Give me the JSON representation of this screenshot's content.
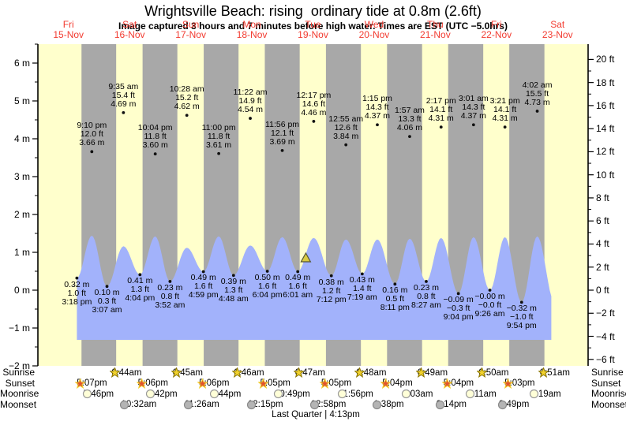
{
  "chart_data": {
    "type": "area",
    "title": "Wrightsville Beach: rising  ordinary tide at 0.8m (2.6ft)",
    "subtitle": "Image captured 3 hours and 7 minutes before high water. Times are EST (UTC −5.0hrs)",
    "x_axis_days": [
      {
        "weekday": "Fri",
        "date": "15-Nov"
      },
      {
        "weekday": "Sat",
        "date": "16-Nov"
      },
      {
        "weekday": "Sun",
        "date": "17-Nov"
      },
      {
        "weekday": "Mon",
        "date": "18-Nov"
      },
      {
        "weekday": "Tue",
        "date": "19-Nov"
      },
      {
        "weekday": "Wed",
        "date": "20-Nov"
      },
      {
        "weekday": "Thu",
        "date": "21-Nov"
      },
      {
        "weekday": "Fri",
        "date": "22-Nov"
      },
      {
        "weekday": "Sat",
        "date": "23-Nov"
      }
    ],
    "y_axis_left": {
      "unit": "m",
      "ticks": [
        {
          "v": 6,
          "label": "6 m"
        },
        {
          "v": 5,
          "label": "5 m"
        },
        {
          "v": 4,
          "label": "4 m"
        },
        {
          "v": 3,
          "label": "3 m"
        },
        {
          "v": 2,
          "label": "2 m"
        },
        {
          "v": 1,
          "label": "1 m"
        },
        {
          "v": 0,
          "label": "0 m"
        },
        {
          "v": -1,
          "label": "−1 m"
        },
        {
          "v": -2,
          "label": "−2 m"
        }
      ]
    },
    "y_axis_right": {
      "unit": "ft",
      "ticks": [
        {
          "v": 20,
          "label": "20 ft"
        },
        {
          "v": 18,
          "label": "18 ft"
        },
        {
          "v": 16,
          "label": "16 ft"
        },
        {
          "v": 14,
          "label": "14 ft"
        },
        {
          "v": 12,
          "label": "12 ft"
        },
        {
          "v": 10,
          "label": "10 ft"
        },
        {
          "v": 8,
          "label": "8 ft"
        },
        {
          "v": 6,
          "label": "6 ft"
        },
        {
          "v": 4,
          "label": "4 ft"
        },
        {
          "v": 2,
          "label": "2 ft"
        },
        {
          "v": 0,
          "label": "0 ft"
        },
        {
          "v": -2,
          "label": "−2 ft"
        },
        {
          "v": -4,
          "label": "−4 ft"
        },
        {
          "v": -6,
          "label": "−6 ft"
        }
      ]
    },
    "tide_events": [
      {
        "day": 0,
        "hour": 15.3,
        "type": "low",
        "time": "3:18 pm",
        "ft": "1.0 ft",
        "m": "0.32 m",
        "height_m": 0.32
      },
      {
        "day": 0,
        "hour": 21.17,
        "type": "high",
        "time": "9:10 pm",
        "ft": "12.0 ft",
        "m": "3.66 m",
        "height_m": 3.66,
        "curve_peak_m": 1.44
      },
      {
        "day": 1,
        "hour": 3.12,
        "type": "low",
        "time": "3:07 am",
        "ft": "0.3 ft",
        "m": "0.10 m",
        "height_m": 0.1
      },
      {
        "day": 1,
        "hour": 9.58,
        "type": "high",
        "time": "9:35 am",
        "ft": "15.4 ft",
        "m": "4.69 m",
        "height_m": 4.69,
        "curve_peak_m": 1.16
      },
      {
        "day": 1,
        "hour": 16.07,
        "type": "low",
        "time": "4:04 pm",
        "ft": "1.3 ft",
        "m": "0.41 m",
        "height_m": 0.41
      },
      {
        "day": 1,
        "hour": 22.07,
        "type": "high",
        "time": "10:04 pm",
        "ft": "11.8 ft",
        "m": "3.60 m",
        "height_m": 3.6,
        "curve_peak_m": 1.42
      },
      {
        "day": 2,
        "hour": 3.87,
        "type": "low",
        "time": "3:52 am",
        "ft": "0.8 ft",
        "m": "0.23 m",
        "height_m": 0.23
      },
      {
        "day": 2,
        "hour": 10.47,
        "type": "high",
        "time": "10:28 am",
        "ft": "15.2 ft",
        "m": "4.62 m",
        "height_m": 4.62,
        "curve_peak_m": 1.12
      },
      {
        "day": 2,
        "hour": 16.98,
        "type": "low",
        "time": "4:59 pm",
        "ft": "1.6 ft",
        "m": "0.49 m",
        "height_m": 0.49
      },
      {
        "day": 2,
        "hour": 23.0,
        "type": "high",
        "time": "11:00 pm",
        "ft": "11.8 ft",
        "m": "3.61 m",
        "height_m": 3.61,
        "curve_peak_m": 1.42
      },
      {
        "day": 3,
        "hour": 4.8,
        "type": "low",
        "time": "4:48 am",
        "ft": "1.3 ft",
        "m": "0.39 m",
        "height_m": 0.39
      },
      {
        "day": 3,
        "hour": 11.37,
        "type": "high",
        "time": "11:22 am",
        "ft": "14.9 ft",
        "m": "4.54 m",
        "height_m": 4.54,
        "curve_peak_m": 1.18
      },
      {
        "day": 3,
        "hour": 18.07,
        "type": "low",
        "time": "6:04 pm",
        "ft": "1.6 ft",
        "m": "0.50 m",
        "height_m": 0.5
      },
      {
        "day": 3,
        "hour": 23.93,
        "type": "high",
        "time": "11:56 pm",
        "ft": "12.1 ft",
        "m": "3.69 m",
        "height_m": 3.69,
        "curve_peak_m": 1.4
      },
      {
        "day": 4,
        "hour": 6.02,
        "type": "low",
        "time": "6:01 am",
        "ft": "1.6 ft",
        "m": "0.49 m",
        "height_m": 0.49
      },
      {
        "day": 4,
        "hour": 12.28,
        "type": "high",
        "time": "12:17 pm",
        "ft": "14.6 ft",
        "m": "4.46 m",
        "height_m": 4.46,
        "curve_peak_m": 1.38
      },
      {
        "day": 4,
        "hour": 19.2,
        "type": "low",
        "time": "7:12 pm",
        "ft": "1.2 ft",
        "m": "0.38 m",
        "height_m": 0.38
      },
      {
        "day": 5,
        "hour": 0.92,
        "type": "high",
        "time": "12:55 am",
        "ft": "12.6 ft",
        "m": "3.84 m",
        "height_m": 3.84,
        "curve_peak_m": 1.34
      },
      {
        "day": 5,
        "hour": 7.32,
        "type": "low",
        "time": "7:19 am",
        "ft": "1.4 ft",
        "m": "0.43 m",
        "height_m": 0.43
      },
      {
        "day": 5,
        "hour": 13.25,
        "type": "high",
        "time": "1:15 pm",
        "ft": "14.3 ft",
        "m": "4.37 m",
        "height_m": 4.37,
        "curve_peak_m": 1.34
      },
      {
        "day": 5,
        "hour": 20.18,
        "type": "low",
        "time": "8:11 pm",
        "ft": "0.5 ft",
        "m": "0.16 m",
        "height_m": 0.16
      },
      {
        "day": 6,
        "hour": 1.95,
        "type": "high",
        "time": "1:57 am",
        "ft": "13.3 ft",
        "m": "4.06 m",
        "height_m": 4.06,
        "curve_peak_m": 1.36
      },
      {
        "day": 6,
        "hour": 8.45,
        "type": "low",
        "time": "8:27 am",
        "ft": "0.8 ft",
        "m": "0.23 m",
        "height_m": 0.23
      },
      {
        "day": 6,
        "hour": 14.28,
        "type": "high",
        "time": "2:17 pm",
        "ft": "14.1 ft",
        "m": "4.31 m",
        "height_m": 4.31,
        "curve_peak_m": 1.38
      },
      {
        "day": 6,
        "hour": 21.07,
        "type": "low",
        "time": "9:04 pm",
        "ft": "−0.3 ft",
        "m": "−0.09 m",
        "height_m": -0.09
      },
      {
        "day": 7,
        "hour": 3.02,
        "type": "high",
        "time": "3:01 am",
        "ft": "14.3 ft",
        "m": "4.37 m",
        "height_m": 4.37,
        "curve_peak_m": 1.4
      },
      {
        "day": 7,
        "hour": 9.43,
        "type": "low",
        "time": "9:26 am",
        "ft": "−0.0 ft",
        "m": "−0.00 m",
        "height_m": 0.0
      },
      {
        "day": 7,
        "hour": 15.35,
        "type": "high",
        "time": "3:21 pm",
        "ft": "14.1 ft",
        "m": "4.31 m",
        "height_m": 4.31,
        "curve_peak_m": 1.4
      },
      {
        "day": 7,
        "hour": 21.9,
        "type": "low",
        "time": "9:54 pm",
        "ft": "−1.0 ft",
        "m": "−0.32 m",
        "height_m": -0.32
      },
      {
        "day": 8,
        "hour": 4.03,
        "type": "high",
        "time": "4:02 am",
        "ft": "15.5 ft",
        "m": "4.73 m",
        "height_m": 4.73,
        "curve_peak_m": 1.42
      }
    ],
    "current_time_marker": {
      "day": 4,
      "hour": 9.17
    },
    "astro_rows": {
      "sunrise": {
        "label": "Sunrise",
        "icon": "sunrise-star-icon",
        "entries": [
          {
            "day": 1,
            "hour": 6.73,
            "time": "6:44am"
          },
          {
            "day": 2,
            "hour": 6.75,
            "time": "6:45am"
          },
          {
            "day": 3,
            "hour": 6.77,
            "time": "6:46am"
          },
          {
            "day": 4,
            "hour": 6.78,
            "time": "6:47am"
          },
          {
            "day": 5,
            "hour": 6.8,
            "time": "6:48am"
          },
          {
            "day": 6,
            "hour": 6.82,
            "time": "6:49am"
          },
          {
            "day": 7,
            "hour": 6.83,
            "time": "6:50am"
          },
          {
            "day": 8,
            "hour": 6.85,
            "time": "6:51am"
          }
        ]
      },
      "sunset": {
        "label": "Sunset",
        "icon": "sunset-star-icon",
        "entries": [
          {
            "day": 0,
            "hour": 17.12,
            "time": "5:07pm"
          },
          {
            "day": 1,
            "hour": 17.1,
            "time": "5:06pm"
          },
          {
            "day": 2,
            "hour": 17.1,
            "time": "5:06pm"
          },
          {
            "day": 3,
            "hour": 17.08,
            "time": "5:05pm"
          },
          {
            "day": 4,
            "hour": 17.08,
            "time": "5:05pm"
          },
          {
            "day": 5,
            "hour": 17.07,
            "time": "5:04pm"
          },
          {
            "day": 6,
            "hour": 17.07,
            "time": "5:04pm"
          },
          {
            "day": 7,
            "hour": 17.05,
            "time": "5:03pm"
          }
        ]
      },
      "moonrise": {
        "label": "Moonrise",
        "icon": "moonrise-circle-icon",
        "entries": [
          {
            "day": 0,
            "hour": 19.77,
            "time": "7:46pm"
          },
          {
            "day": 1,
            "hour": 20.7,
            "time": "8:42pm"
          },
          {
            "day": 2,
            "hour": 21.73,
            "time": "9:44pm"
          },
          {
            "day": 3,
            "hour": 22.82,
            "time": "10:49pm"
          },
          {
            "day": 4,
            "hour": 23.93,
            "time": "11:56pm"
          },
          {
            "day": 6,
            "hour": 1.05,
            "time": "1:03am"
          },
          {
            "day": 7,
            "hour": 2.18,
            "time": "2:11am"
          },
          {
            "day": 8,
            "hour": 3.32,
            "time": "3:19am"
          }
        ]
      },
      "moonset": {
        "label": "Moonset",
        "icon": "moonset-circle-icon",
        "entries": [
          {
            "day": 1,
            "hour": 10.53,
            "time": "10:32am"
          },
          {
            "day": 2,
            "hour": 11.43,
            "time": "11:26am"
          },
          {
            "day": 3,
            "hour": 12.25,
            "time": "12:15pm"
          },
          {
            "day": 4,
            "hour": 12.97,
            "time": "12:58pm"
          },
          {
            "day": 5,
            "hour": 13.63,
            "time": "1:38pm"
          },
          {
            "day": 6,
            "hour": 14.23,
            "time": "2:14pm"
          },
          {
            "day": 7,
            "hour": 14.82,
            "time": "2:49pm"
          }
        ]
      }
    },
    "moon_phase_label": "Last Quarter | 4:13pm",
    "colors": {
      "day_band": "#ffffcc",
      "night_band": "#a8a8a8",
      "water": "#a2b2fb",
      "date_text": "#f23b30",
      "axis": "#000000",
      "marker_fill": "#d9ca43",
      "marker_stroke": "#555533",
      "sunrise_star": "#f2d22e",
      "sunset_star": "#e05430",
      "moonrise_circle": "#ffffd8",
      "moonset_circle": "#b4b4b4"
    }
  }
}
